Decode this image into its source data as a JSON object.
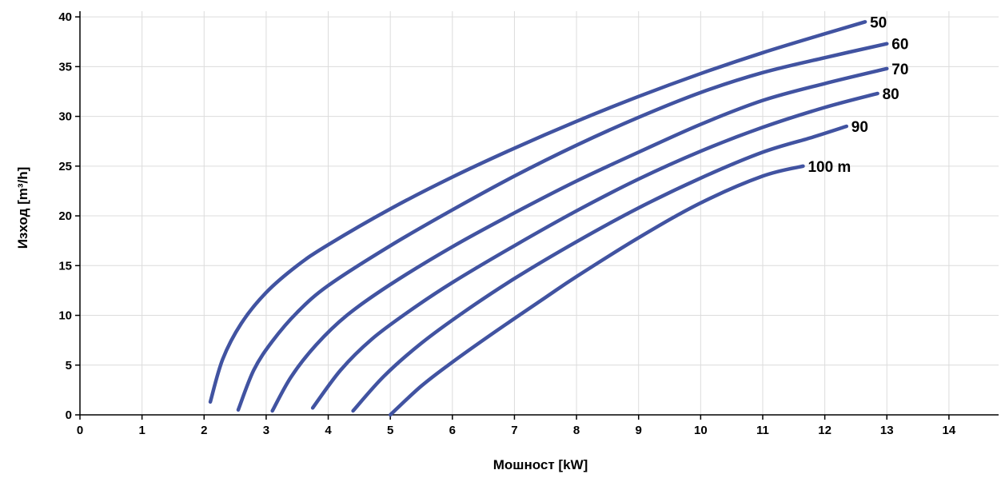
{
  "chart_data": {
    "type": "line",
    "xlabel": "Мошност [kW]",
    "ylabel": "Изход  [m³/h]",
    "xlim": [
      0,
      14.8
    ],
    "ylim": [
      0,
      40
    ],
    "x_ticks": [
      0,
      1,
      2,
      3,
      4,
      5,
      6,
      7,
      8,
      9,
      10,
      11,
      12,
      13,
      14
    ],
    "y_ticks": [
      0,
      5,
      10,
      15,
      20,
      25,
      30,
      35,
      40
    ],
    "grid": true,
    "legend": "labels at line ends",
    "line_color": "#4153a1",
    "series": [
      {
        "name": "50",
        "x": [
          2.1,
          2.3,
          2.6,
          3.0,
          3.5,
          4.0,
          5.0,
          6.0,
          7.0,
          8.0,
          9.0,
          10.0,
          11.0,
          12.0,
          12.65
        ],
        "y": [
          1.3,
          5.6,
          9.2,
          12.3,
          15.0,
          17.1,
          20.7,
          23.9,
          26.8,
          29.5,
          32.0,
          34.3,
          36.4,
          38.3,
          39.5
        ]
      },
      {
        "name": "60",
        "x": [
          2.55,
          2.8,
          3.1,
          3.5,
          4.0,
          5.0,
          6.0,
          7.0,
          8.0,
          9.0,
          10.0,
          11.0,
          12.0,
          13.0
        ],
        "y": [
          0.5,
          4.5,
          7.4,
          10.3,
          13.0,
          17.0,
          20.6,
          24.0,
          27.1,
          29.9,
          32.4,
          34.4,
          35.9,
          37.3
        ]
      },
      {
        "name": "70",
        "x": [
          3.1,
          3.4,
          3.8,
          4.3,
          5.0,
          6.0,
          7.0,
          8.0,
          9.0,
          10.0,
          11.0,
          12.0,
          13.0
        ],
        "y": [
          0.4,
          3.8,
          7.0,
          10.0,
          13.1,
          16.9,
          20.3,
          23.5,
          26.4,
          29.2,
          31.6,
          33.3,
          34.8
        ]
      },
      {
        "name": "80",
        "x": [
          3.75,
          4.2,
          4.7,
          5.3,
          6.0,
          7.0,
          8.0,
          9.0,
          10.0,
          11.0,
          12.0,
          12.85
        ],
        "y": [
          0.7,
          4.5,
          7.6,
          10.4,
          13.3,
          17.0,
          20.5,
          23.7,
          26.5,
          28.9,
          30.9,
          32.3
        ]
      },
      {
        "name": "90",
        "x": [
          4.4,
          4.9,
          5.5,
          6.2,
          7.0,
          8.0,
          9.0,
          10.0,
          11.0,
          11.8,
          12.35
        ],
        "y": [
          0.4,
          3.9,
          7.2,
          10.4,
          13.7,
          17.4,
          20.8,
          23.8,
          26.4,
          27.9,
          29.0
        ]
      },
      {
        "name": "100 m",
        "x": [
          5.0,
          5.5,
          6.0,
          6.7,
          7.5,
          8.0,
          9.0,
          10.0,
          11.0,
          11.65
        ],
        "y": [
          0.0,
          2.9,
          5.3,
          8.4,
          11.8,
          13.9,
          17.8,
          21.3,
          24.0,
          25.0
        ]
      }
    ]
  }
}
